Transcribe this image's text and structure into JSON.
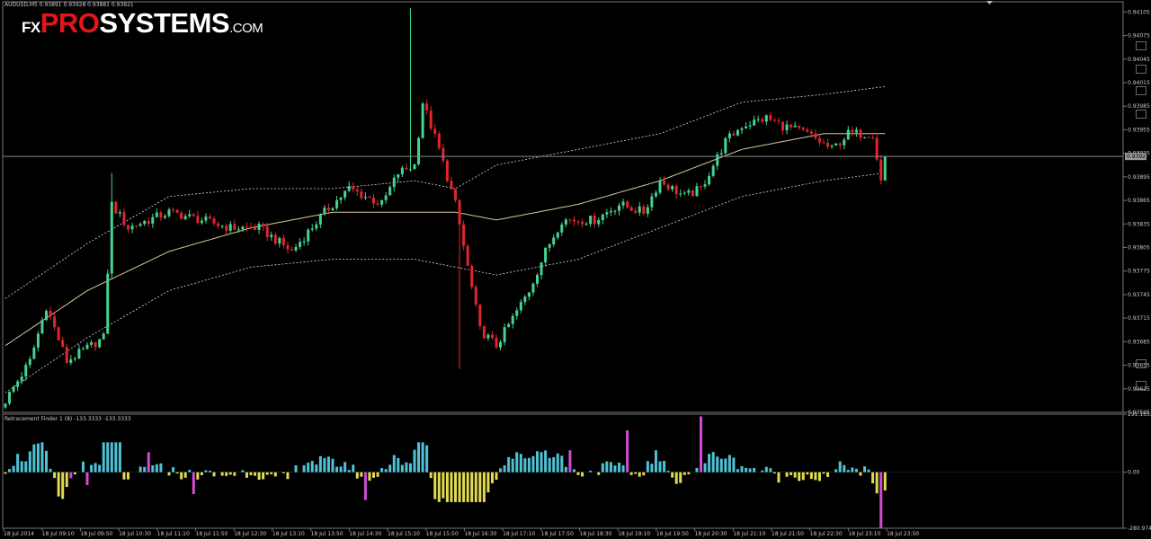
{
  "main_chart": {
    "header": "AUDUSD,M5 0.93891 0.93928 0.93881 0.93921",
    "price_ticks": [
      "0.94105",
      "0.94075",
      "0.94045",
      "0.94015",
      "0.93985",
      "0.93955",
      "0.93925",
      "0.93895",
      "0.93865",
      "0.93835",
      "0.93805",
      "0.93775",
      "0.93745",
      "0.93715",
      "0.93685",
      "0.93655",
      "0.93625",
      "0.93595"
    ],
    "current_price_label": "0.93921"
  },
  "indicator": {
    "header": "Retracement Finder 1 (8) -133.3333 -133.3333",
    "ticks": [
      "291.1653",
      "0.00",
      "-280.9747"
    ]
  },
  "time_axis": {
    "labels": [
      "18 Jul 2014",
      "18 Jul 09:10",
      "18 Jul 09:50",
      "18 Jul 10:30",
      "18 Jul 11:10",
      "18 Jul 11:50",
      "18 Jul 12:30",
      "18 Jul 13:10",
      "18 Jul 13:50",
      "18 Jul 14:30",
      "18 Jul 15:10",
      "18 Jul 15:50",
      "18 Jul 16:30",
      "18 Jul 17:10",
      "18 Jul 17:50",
      "18 Jul 18:30",
      "18 Jul 19:10",
      "18 Jul 19:50",
      "18 Jul 20:30",
      "18 Jul 21:10",
      "18 Jul 21:50",
      "18 Jul 22:30",
      "18 Jul 23:10",
      "18 Jul 23:50"
    ]
  },
  "logo": {
    "fx": "FX",
    "pro": "PRO",
    "sys": "SYSTEMS",
    "com": ".COM"
  },
  "colors": {
    "background": "#000000",
    "bull": "#44d48f",
    "bear": "#e0262b",
    "ma": "#d9c79c",
    "band": "#d8d8d8",
    "osc_up": "#4fc3d6",
    "osc_down": "#e2db4f",
    "osc_peak": "#d14bd6",
    "axis": "#c8c8c8",
    "price_line": "#8a8a8a"
  },
  "chart_data": {
    "type": "candlestick",
    "symbol": "AUDUSD",
    "timeframe": "M5",
    "ylim": [
      0.93595,
      0.94118
    ],
    "current_price": 0.93921,
    "anchors": {
      "close": [
        [
          0,
          0.9361
        ],
        [
          6,
          0.9366
        ],
        [
          10,
          0.9373
        ],
        [
          15,
          0.9366
        ],
        [
          24,
          0.9369
        ],
        [
          26,
          0.9386
        ],
        [
          30,
          0.9383
        ],
        [
          40,
          0.9385
        ],
        [
          48,
          0.9384
        ],
        [
          55,
          0.9383
        ],
        [
          62,
          0.9383
        ],
        [
          70,
          0.938
        ],
        [
          78,
          0.9385
        ],
        [
          84,
          0.9388
        ],
        [
          92,
          0.9386
        ],
        [
          96,
          0.939
        ],
        [
          100,
          0.9391
        ],
        [
          102,
          0.9399
        ],
        [
          106,
          0.9393
        ],
        [
          110,
          0.9386
        ],
        [
          113,
          0.9378
        ],
        [
          116,
          0.937
        ],
        [
          120,
          0.9368
        ],
        [
          128,
          0.9375
        ],
        [
          132,
          0.938
        ],
        [
          136,
          0.9384
        ],
        [
          144,
          0.9384
        ],
        [
          150,
          0.9386
        ],
        [
          156,
          0.9385
        ],
        [
          160,
          0.9389
        ],
        [
          166,
          0.9387
        ],
        [
          170,
          0.9388
        ],
        [
          176,
          0.9394
        ],
        [
          180,
          0.9396
        ],
        [
          186,
          0.9397
        ],
        [
          190,
          0.9396
        ],
        [
          196,
          0.9395
        ],
        [
          202,
          0.9393
        ],
        [
          206,
          0.9395
        ],
        [
          212,
          0.9395
        ],
        [
          214,
          0.9389
        ],
        [
          215,
          0.9392
        ]
      ],
      "ma": [
        [
          0,
          0.9368
        ],
        [
          20,
          0.9375
        ],
        [
          40,
          0.938
        ],
        [
          60,
          0.9383
        ],
        [
          80,
          0.9385
        ],
        [
          100,
          0.9385
        ],
        [
          110,
          0.9385
        ],
        [
          120,
          0.9384
        ],
        [
          140,
          0.9386
        ],
        [
          160,
          0.9389
        ],
        [
          180,
          0.9393
        ],
        [
          200,
          0.9395
        ],
        [
          215,
          0.9395
        ]
      ],
      "upper": [
        [
          0,
          0.9374
        ],
        [
          20,
          0.9381
        ],
        [
          40,
          0.9387
        ],
        [
          60,
          0.9388
        ],
        [
          80,
          0.9388
        ],
        [
          100,
          0.9389
        ],
        [
          110,
          0.9388
        ],
        [
          120,
          0.9391
        ],
        [
          140,
          0.9393
        ],
        [
          160,
          0.9395
        ],
        [
          180,
          0.9399
        ],
        [
          200,
          0.94
        ],
        [
          215,
          0.9401
        ]
      ],
      "lower": [
        [
          0,
          0.9362
        ],
        [
          20,
          0.9369
        ],
        [
          40,
          0.9375
        ],
        [
          60,
          0.9378
        ],
        [
          80,
          0.9379
        ],
        [
          100,
          0.9379
        ],
        [
          110,
          0.9378
        ],
        [
          120,
          0.9377
        ],
        [
          140,
          0.9379
        ],
        [
          160,
          0.9383
        ],
        [
          180,
          0.9387
        ],
        [
          200,
          0.9389
        ],
        [
          215,
          0.939
        ]
      ]
    },
    "spikes": [
      {
        "i": 99,
        "high": 0.9411
      },
      {
        "i": 111,
        "low": 0.9365
      },
      {
        "i": 26,
        "high": 0.939
      }
    ],
    "oscillator": {
      "ylim": [
        -280.9747,
        291.1653
      ],
      "magenta_bars": [
        {
          "i": 20,
          "v": -65
        },
        {
          "i": 16,
          "v": -30
        },
        {
          "i": 35,
          "v": 100
        },
        {
          "i": 46,
          "v": -110
        },
        {
          "i": 88,
          "v": -140
        },
        {
          "i": 138,
          "v": 110
        },
        {
          "i": 152,
          "v": 210
        },
        {
          "i": 170,
          "v": 280
        },
        {
          "i": 214,
          "v": -280
        }
      ]
    }
  }
}
